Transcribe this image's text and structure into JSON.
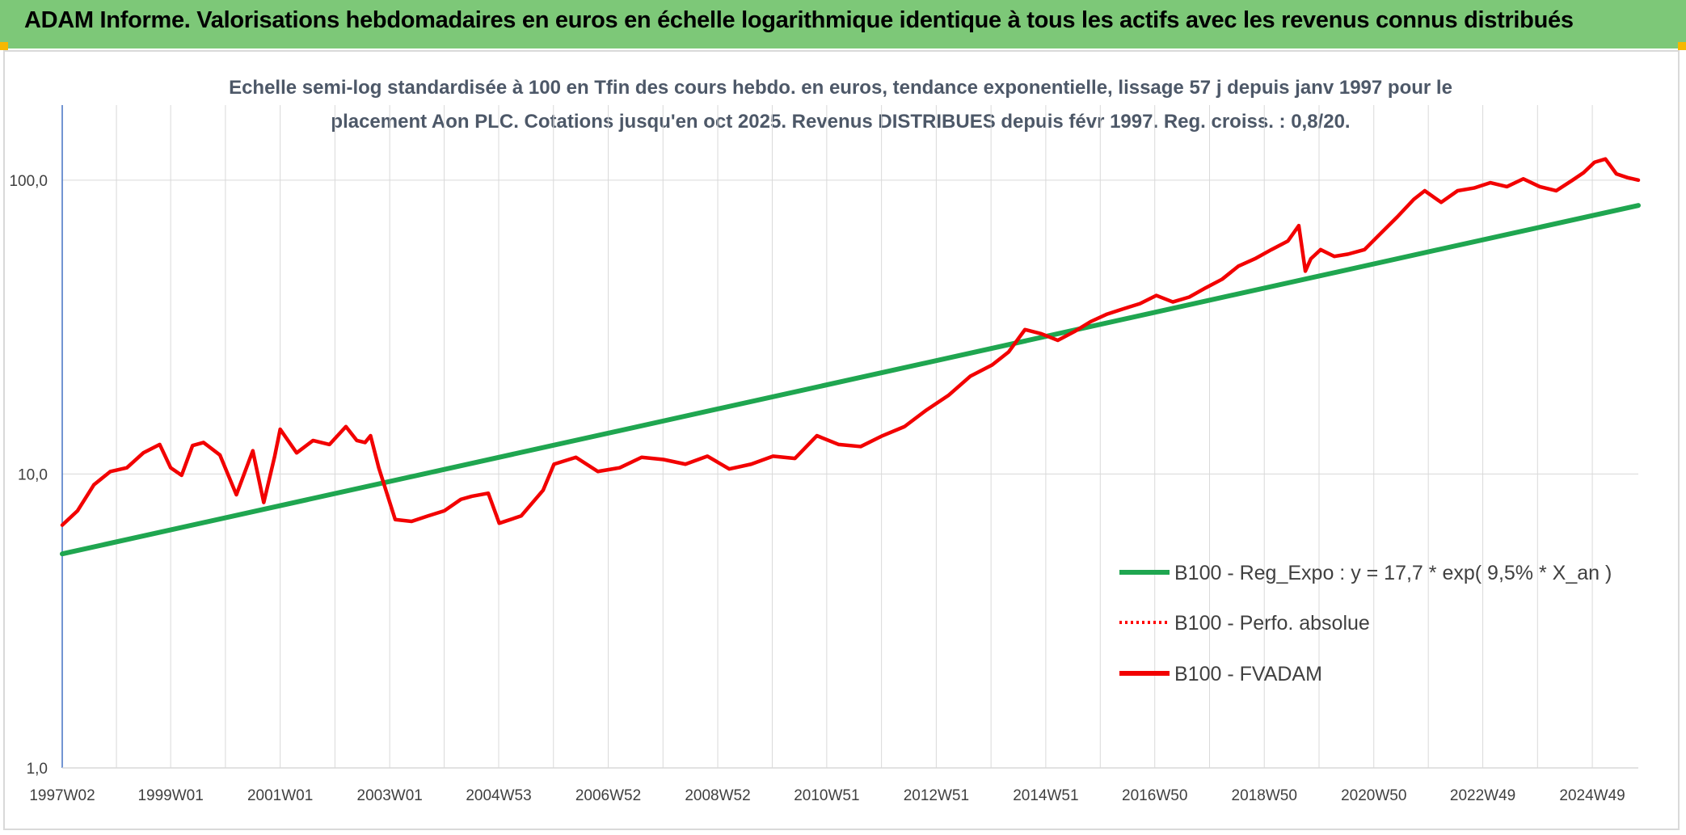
{
  "header": {
    "title": "ADAM Informe. Valorisations hebdomadaires en euros en échelle logarithmique identique à tous les actifs avec les revenus connus distribués"
  },
  "colors": {
    "banner": "#7dc878",
    "trend": "#1fa650",
    "fvadam": "#f20000",
    "perfo": "#ff0000",
    "grid": "#d9d9d9",
    "axis": "#4472c4"
  },
  "chart_data": {
    "type": "line",
    "subtitle_line1": "Echelle semi-log standardisée à 100 en Tfin des cours hebdo. en euros, tendance exponentielle, lissage 57 j depuis janv 1997 pour le",
    "subtitle_line2": "placement Aon PLC. Cotations jusqu'en oct 2025. Revenus DISTRIBUES depuis févr 1997. Reg. croiss. : 0,8/20.",
    "y_scale": "log",
    "ylim": [
      1,
      180
    ],
    "y_ticks": [
      {
        "value": 1,
        "label": "1,0"
      },
      {
        "value": 10,
        "label": "10,0"
      },
      {
        "value": 100,
        "label": "100,0"
      }
    ],
    "xlim": [
      1997.02,
      2025.8
    ],
    "x_ticks": [
      {
        "value": 1997.02,
        "label": "1997W02"
      },
      {
        "value": 1999.0,
        "label": "1999W01"
      },
      {
        "value": 2001.0,
        "label": "2001W01"
      },
      {
        "value": 2003.0,
        "label": "2003W01"
      },
      {
        "value": 2004.99,
        "label": "2004W53"
      },
      {
        "value": 2006.99,
        "label": "2006W52"
      },
      {
        "value": 2008.99,
        "label": "2008W52"
      },
      {
        "value": 2010.98,
        "label": "2010W51"
      },
      {
        "value": 2012.98,
        "label": "2012W51"
      },
      {
        "value": 2014.98,
        "label": "2014W51"
      },
      {
        "value": 2016.97,
        "label": "2016W50"
      },
      {
        "value": 2018.97,
        "label": "2018W50"
      },
      {
        "value": 2020.97,
        "label": "2020W50"
      },
      {
        "value": 2022.96,
        "label": "2022W49"
      },
      {
        "value": 2024.96,
        "label": "2024W49"
      }
    ],
    "grid": true,
    "legend_position": "bottom-right",
    "series": [
      {
        "name": "B100 - Reg_Expo : y = 17,7 * exp( 9,5% *  X_an )",
        "style": "solid-thick",
        "color": "#1fa650",
        "x": [
          1997.02,
          2025.8
        ],
        "y": [
          5.35,
          82
        ]
      },
      {
        "name": "B100 - Perfo. absolue",
        "style": "dotted",
        "color": "#ff0000",
        "x": [],
        "y": []
      },
      {
        "name": "B100 - FVADAM",
        "style": "solid",
        "color": "#f20000",
        "x": [
          1997.02,
          1997.3,
          1997.6,
          1997.9,
          1998.2,
          1998.5,
          1998.8,
          1999.0,
          1999.2,
          1999.4,
          1999.6,
          1999.9,
          2000.2,
          2000.5,
          2000.7,
          2000.9,
          2001.0,
          2001.3,
          2001.6,
          2001.9,
          2002.2,
          2002.4,
          2002.55,
          2002.65,
          2002.8,
          2003.1,
          2003.4,
          2003.7,
          2004.0,
          2004.3,
          2004.5,
          2004.8,
          2005.0,
          2005.4,
          2005.8,
          2006.0,
          2006.4,
          2006.8,
          2007.2,
          2007.6,
          2008.0,
          2008.4,
          2008.8,
          2009.2,
          2009.6,
          2010.0,
          2010.4,
          2010.8,
          2011.2,
          2011.6,
          2012.0,
          2012.4,
          2012.8,
          2013.2,
          2013.6,
          2014.0,
          2014.3,
          2014.6,
          2014.9,
          2015.2,
          2015.5,
          2015.8,
          2016.1,
          2016.4,
          2016.7,
          2017.0,
          2017.3,
          2017.6,
          2017.9,
          2018.2,
          2018.5,
          2018.8,
          2019.1,
          2019.4,
          2019.6,
          2019.72,
          2019.82,
          2020.0,
          2020.25,
          2020.5,
          2020.8,
          2021.1,
          2021.4,
          2021.7,
          2021.9,
          2022.2,
          2022.5,
          2022.8,
          2023.1,
          2023.4,
          2023.7,
          2024.0,
          2024.3,
          2024.6,
          2024.8,
          2025.0,
          2025.2,
          2025.4,
          2025.6,
          2025.8
        ],
        "y": [
          6.7,
          7.5,
          9.2,
          10.2,
          10.5,
          11.8,
          12.6,
          10.5,
          9.9,
          12.5,
          12.8,
          11.6,
          8.5,
          12.0,
          8.0,
          11.5,
          14.2,
          11.8,
          13.0,
          12.6,
          14.5,
          13.0,
          12.8,
          13.5,
          10.5,
          7.0,
          6.9,
          7.2,
          7.5,
          8.2,
          8.4,
          8.6,
          6.8,
          7.2,
          8.8,
          10.8,
          11.4,
          10.2,
          10.5,
          11.4,
          11.2,
          10.8,
          11.5,
          10.4,
          10.8,
          11.5,
          11.3,
          13.5,
          12.6,
          12.4,
          13.5,
          14.5,
          16.5,
          18.5,
          21.5,
          23.5,
          26.0,
          31.0,
          30.0,
          28.5,
          30.5,
          33.0,
          35.0,
          36.5,
          38.0,
          40.5,
          38.5,
          40.0,
          43.0,
          46.0,
          51.0,
          54.0,
          58.0,
          62.0,
          70.0,
          49.0,
          54.0,
          58.0,
          55.0,
          56.0,
          58.0,
          66.0,
          75.0,
          86.0,
          92.0,
          84.0,
          92.0,
          94.0,
          98.0,
          95.0,
          101.0,
          95.0,
          92.0,
          100.0,
          106.0,
          115.0,
          118.0,
          105.0,
          102.0,
          100.0
        ]
      }
    ]
  }
}
